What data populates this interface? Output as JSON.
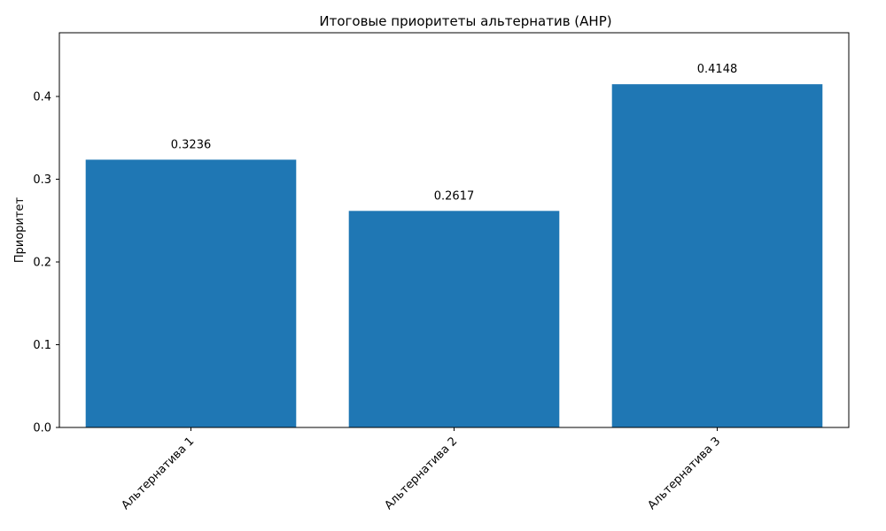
{
  "chart_data": {
    "type": "bar",
    "title": "Итоговые приоритеты альтернатив (AHP)",
    "xlabel": "",
    "ylabel": "Приоритет",
    "categories": [
      "Альтернатива 1",
      "Альтернатива 2",
      "Альтернатива 3"
    ],
    "values": [
      0.3236,
      0.2617,
      0.4148
    ],
    "data_labels": [
      "0.3236",
      "0.2617",
      "0.4148"
    ],
    "ylim": [
      0,
      0.477
    ],
    "yticks": [
      0.0,
      0.1,
      0.2,
      0.3,
      0.4
    ],
    "ytick_labels": [
      "0.0",
      "0.1",
      "0.2",
      "0.3",
      "0.4"
    ],
    "bar_color": "#1f77b4",
    "grid": false,
    "legend": "none",
    "xtick_rotation": "45 degrees"
  }
}
